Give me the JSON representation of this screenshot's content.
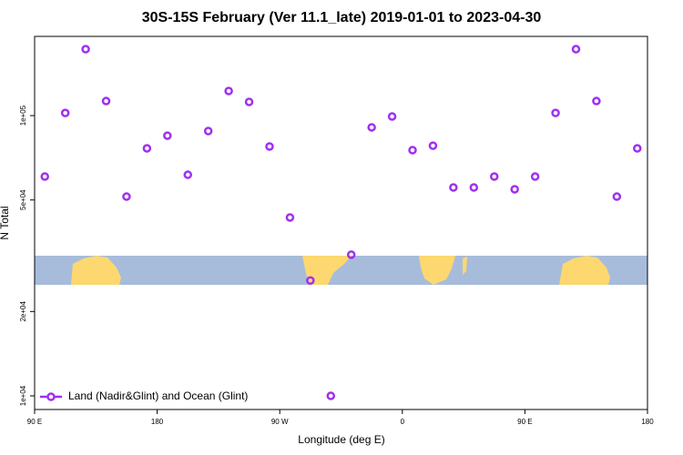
{
  "chart_data": {
    "type": "scatter",
    "title": "30S-15S February (Ver 11.1_late)   2019-01-01 to 2023-04-30",
    "x_label": "Longitude (deg E)",
    "y_label": "N Total",
    "log_y": true,
    "legend_position": "bottom-left",
    "xlim": [
      90,
      540
    ],
    "xticks": [
      {
        "value": 90,
        "label": "90 E"
      },
      180,
      {
        "value": 270,
        "label": "90 W"
      },
      {
        "value": 360,
        "label": "0"
      },
      {
        "value": 450,
        "label": "90 E"
      },
      {
        "value": 540,
        "label": "180"
      }
    ],
    "ylim": [
      8940,
      191700
    ],
    "yticks": [
      {
        "value": 10000,
        "label": "1e+04"
      },
      {
        "value": 20000,
        "label": "2e+04"
      },
      {
        "value": 50000,
        "label": "5e+04"
      },
      {
        "value": 100000,
        "label": "1e+05"
      }
    ],
    "series": [
      {
        "name": "Land (Nadir&Glint) and Ocean (Glint)",
        "color": "#a030f0",
        "x": [
          97.5,
          112.5,
          127.5,
          142.5,
          157.5,
          172.5,
          187.5,
          202.5,
          217.5,
          232.5,
          247.5,
          262.5,
          277.5,
          292.5,
          307.5,
          322.5,
          337.5,
          352.5,
          367.5,
          382.5,
          397.5,
          412.5,
          427.5,
          442.5,
          457.5,
          472.5,
          487.5,
          502.5,
          517.5,
          532.5
        ],
        "values": [
          60600,
          102200,
          172600,
          112700,
          51400,
          76400,
          84800,
          61500,
          88100,
          122400,
          111900,
          77600,
          43300,
          25800,
          10000,
          31900,
          90800,
          99300,
          75300,
          78100,
          55400,
          55400,
          60600,
          54600,
          60600,
          102200,
          172600,
          112700,
          51400,
          76400
        ]
      }
    ]
  }
}
